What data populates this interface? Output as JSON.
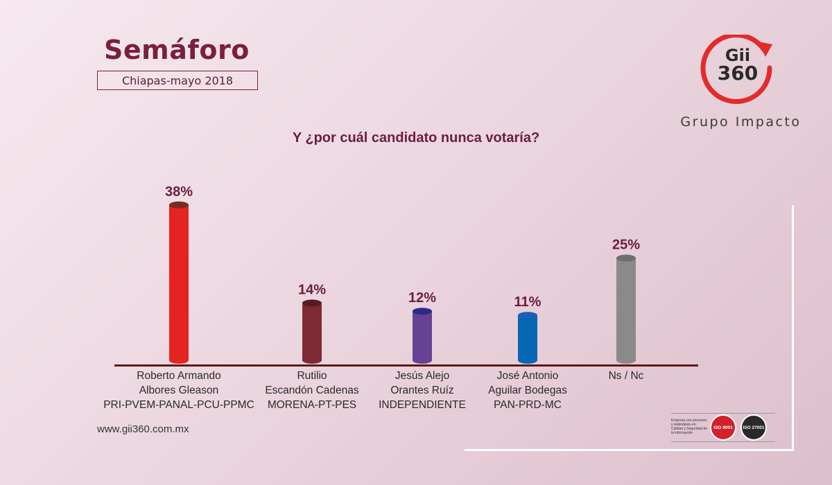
{
  "header": {
    "title": "Semáforo",
    "subtitle": "Chiapas-mayo 2018"
  },
  "brand": {
    "logo_line1": "Gii",
    "logo_line2": "360",
    "name": "Grupo Impacto"
  },
  "footer": {
    "website": "www.gii360.com.mx",
    "cert_text": "Empresa con procesos y estándares en: Calidad y Seguridad de la información",
    "iso_9001": "ISO 9001",
    "iso_27001": "ISO 27001"
  },
  "colors": {
    "accent": "#7a1f3d",
    "logo_red": "#e32b2b"
  },
  "chart_data": {
    "type": "bar",
    "title": "Y ¿por cuál candidato nunca votaría?",
    "xlabel": "",
    "ylabel": "",
    "ylim": [
      0,
      40
    ],
    "grid": false,
    "categories": [
      "Roberto Armando\nAlbores Gleason\nPRI-PVEM-PANAL-PCU-PPMC",
      "Rutilio\nEscandón Cadenas\nMORENA-PT-PES",
      "Jesús Alejo\nOrantes Ruíz\nINDEPENDIENTE",
      "José Antonio\nAguilar Bodegas\nPAN-PRD-MC",
      "Ns / Nc"
    ],
    "values": [
      38,
      14,
      12,
      11,
      25
    ],
    "value_labels": [
      "38%",
      "14%",
      "12%",
      "11%",
      "25%"
    ],
    "colors": [
      "#e52421",
      "#7d2a35",
      "#674293",
      "#0667b3",
      "#8a8a8a"
    ],
    "cap_colors": [
      "#7a2d22",
      "#5a1a24",
      "#2c2a87",
      "#1c5fb8",
      "#6e6e6e"
    ]
  }
}
